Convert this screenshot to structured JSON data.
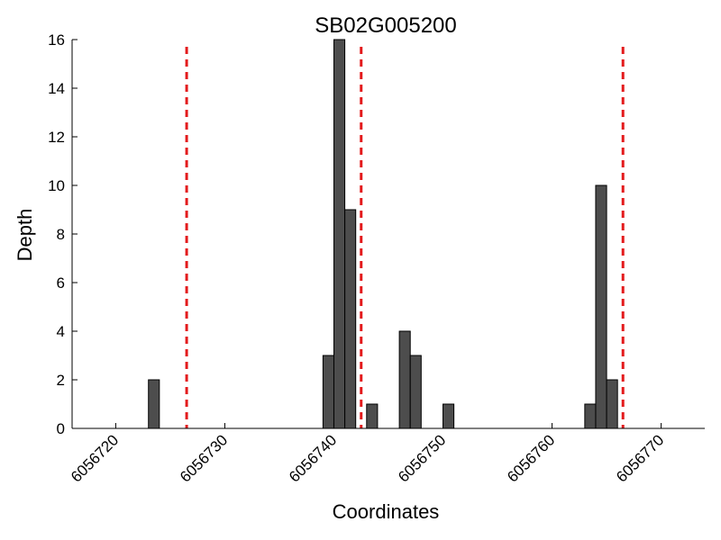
{
  "chart_data": {
    "type": "bar",
    "title": "SB02G005200",
    "xlabel": "Coordinates",
    "ylabel": "Depth",
    "xlim": [
      6056716,
      6056774
    ],
    "ylim": [
      0,
      16
    ],
    "xticks": [
      6056720,
      6056730,
      6056740,
      6056750,
      6056760,
      6056770
    ],
    "xtick_labels": [
      "6056720",
      "6056730",
      "6056740",
      "6056750",
      "6056760",
      "6056770"
    ],
    "yticks": [
      0,
      2,
      4,
      6,
      8,
      10,
      12,
      14,
      16
    ],
    "ytick_labels": [
      "0",
      "2",
      "4",
      "6",
      "8",
      "10",
      "12",
      "14",
      "16"
    ],
    "grid": false,
    "bar_width": 1,
    "x": [
      6056716,
      6056717,
      6056718,
      6056719,
      6056720,
      6056721,
      6056722,
      6056723,
      6056724,
      6056725,
      6056726,
      6056727,
      6056728,
      6056729,
      6056730,
      6056731,
      6056732,
      6056733,
      6056734,
      6056735,
      6056736,
      6056737,
      6056738,
      6056739,
      6056740,
      6056741,
      6056742,
      6056743,
      6056744,
      6056745,
      6056746,
      6056747,
      6056748,
      6056749,
      6056750,
      6056751,
      6056752,
      6056753,
      6056754,
      6056755,
      6056756,
      6056757,
      6056758,
      6056759,
      6056760,
      6056761,
      6056762,
      6056763,
      6056764,
      6056765,
      6056766,
      6056767,
      6056768,
      6056769,
      6056770,
      6056771,
      6056772,
      6056773
    ],
    "values": [
      0,
      0,
      0,
      0,
      0,
      0,
      0,
      2,
      0,
      0,
      0,
      0,
      0,
      0,
      0,
      0,
      0,
      0,
      0,
      0,
      0,
      0,
      0,
      3,
      16,
      9,
      0,
      1,
      0,
      0,
      4,
      3,
      0,
      0,
      1,
      0,
      0,
      0,
      0,
      0,
      0,
      0,
      0,
      0,
      0,
      0,
      0,
      1,
      10,
      2,
      0,
      0,
      0,
      0,
      0,
      0,
      0,
      0
    ],
    "vlines": [
      6056726.5,
      6056742.5,
      6056766.5
    ],
    "colors": {
      "bar": "#4d4d4d",
      "edge": "#000000",
      "vline": "#e31a1c"
    }
  }
}
